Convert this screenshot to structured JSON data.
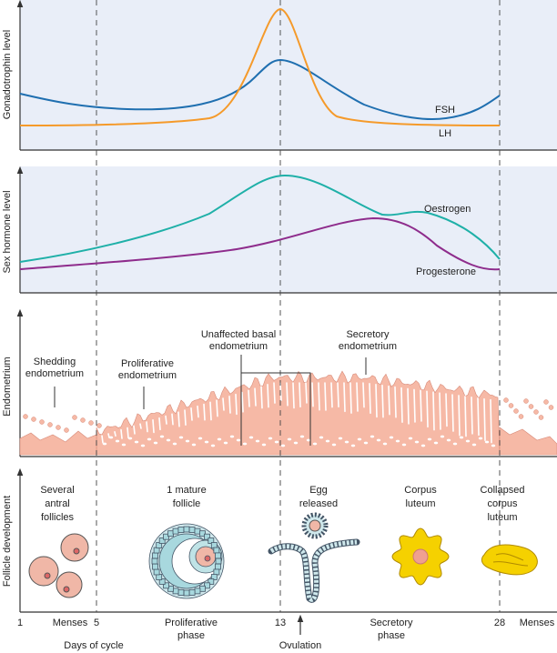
{
  "panels": [
    {
      "y_label": "Gonadotrophin level",
      "curve_labels": [
        "FSH",
        "LH"
      ]
    },
    {
      "y_label": "Sex hormone level",
      "curve_labels": [
        "Oestrogen",
        "Progesterone"
      ]
    },
    {
      "y_label": "Endometrium",
      "labels": [
        [
          "Shedding",
          "endometrium"
        ],
        [
          "Proliferative",
          "endometrium"
        ],
        [
          "Unaffected basal",
          "endometrium"
        ],
        [
          "Secretory",
          "endometrium"
        ]
      ]
    },
    {
      "y_label": "Follicle development",
      "labels": [
        [
          "Several",
          "antral",
          "follicles"
        ],
        [
          "1 mature",
          "follicle"
        ],
        [
          "Egg",
          "released"
        ],
        [
          "Corpus",
          "luteum"
        ],
        [
          "Collapsed",
          "corpus",
          "luteum"
        ]
      ]
    }
  ],
  "x_axis": {
    "ticks": [
      "1",
      "Menses",
      "5",
      [
        "Proliferative",
        "phase"
      ],
      "13",
      [
        "Secretory",
        "phase"
      ],
      "28",
      "Menses"
    ],
    "title": "Days of cycle",
    "annotation": "Ovulation"
  }
}
